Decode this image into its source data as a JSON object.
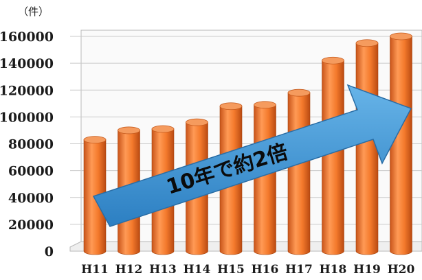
{
  "chart_data": {
    "type": "bar",
    "unit_label": "（件）",
    "categories": [
      "H11",
      "H12",
      "H13",
      "H14",
      "H15",
      "H16",
      "H17",
      "H18",
      "H19",
      "H20"
    ],
    "values": [
      83000,
      90000,
      91000,
      96000,
      108000,
      109000,
      118000,
      142000,
      155000,
      160000
    ],
    "ylim": [
      0,
      160000
    ],
    "yticks": [
      "0",
      "20000",
      "40000",
      "60000",
      "80000",
      "100000",
      "120000",
      "140000",
      "160000"
    ],
    "grid": true,
    "annotation": "10年で約2倍",
    "bar_color": "#f07a2b",
    "arrow_color": "#3f93d0"
  }
}
